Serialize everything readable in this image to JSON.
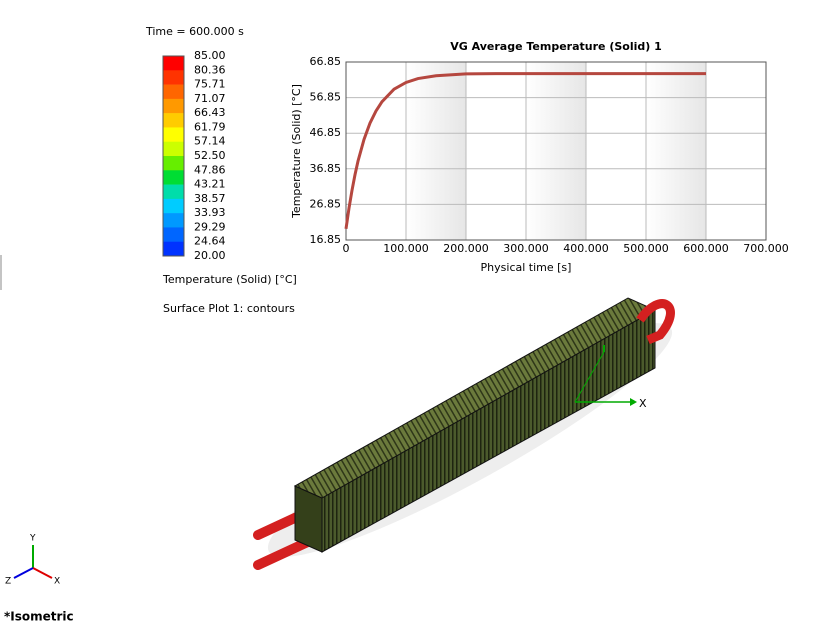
{
  "time_label": "Time = 600.000 s",
  "legend": {
    "labels": [
      "85.00",
      "80.36",
      "75.71",
      "71.07",
      "66.43",
      "61.79",
      "57.14",
      "52.50",
      "47.86",
      "43.21",
      "38.57",
      "33.93",
      "29.29",
      "24.64",
      "20.00"
    ],
    "colors": [
      "#ff0000",
      "#ff3300",
      "#ff6600",
      "#ff9900",
      "#ffcc00",
      "#ffff00",
      "#ccff00",
      "#66ee00",
      "#00dd33",
      "#00ddaa",
      "#00ccff",
      "#0099ff",
      "#0066ff",
      "#0033ff"
    ],
    "title": "Temperature (Solid) [°C]"
  },
  "plot_label": "Surface Plot 1: contours",
  "model_axis_label": "X",
  "triad": {
    "x": "X",
    "y": "Y",
    "z": "Z"
  },
  "view_label": "*Isometric",
  "chart_data": {
    "type": "line",
    "title": "VG Average Temperature (Solid) 1",
    "x_label": "Physical time [s]",
    "y_label": "Temperature (Solid) [°C]",
    "x": [
      0,
      5,
      10,
      15,
      20,
      30,
      40,
      50,
      60,
      80,
      100,
      120,
      150,
      200,
      250,
      300,
      400,
      500,
      600
    ],
    "series": [
      {
        "name": "VG Average Temperature (Solid) 1",
        "color": "#b5473f",
        "values": [
          20.0,
          25.8,
          30.8,
          35.2,
          39.0,
          45.1,
          49.7,
          53.1,
          55.7,
          59.2,
          61.1,
          62.2,
          63.0,
          63.5,
          63.6,
          63.6,
          63.6,
          63.6,
          63.6
        ]
      }
    ],
    "xlim": [
      0,
      700
    ],
    "xticks": [
      {
        "value": 0,
        "label": "0"
      },
      {
        "value": 100,
        "label": "100.000"
      },
      {
        "value": 200,
        "label": "200.000"
      },
      {
        "value": 300,
        "label": "300.000"
      },
      {
        "value": 400,
        "label": "400.000"
      },
      {
        "value": 500,
        "label": "500.000"
      },
      {
        "value": 600,
        "label": "600.000"
      },
      {
        "value": 700,
        "label": "700.000"
      }
    ],
    "ylim": [
      16.85,
      66.85
    ],
    "yticks": [
      16.85,
      26.85,
      36.85,
      46.85,
      56.85,
      66.85
    ],
    "grid": true
  }
}
